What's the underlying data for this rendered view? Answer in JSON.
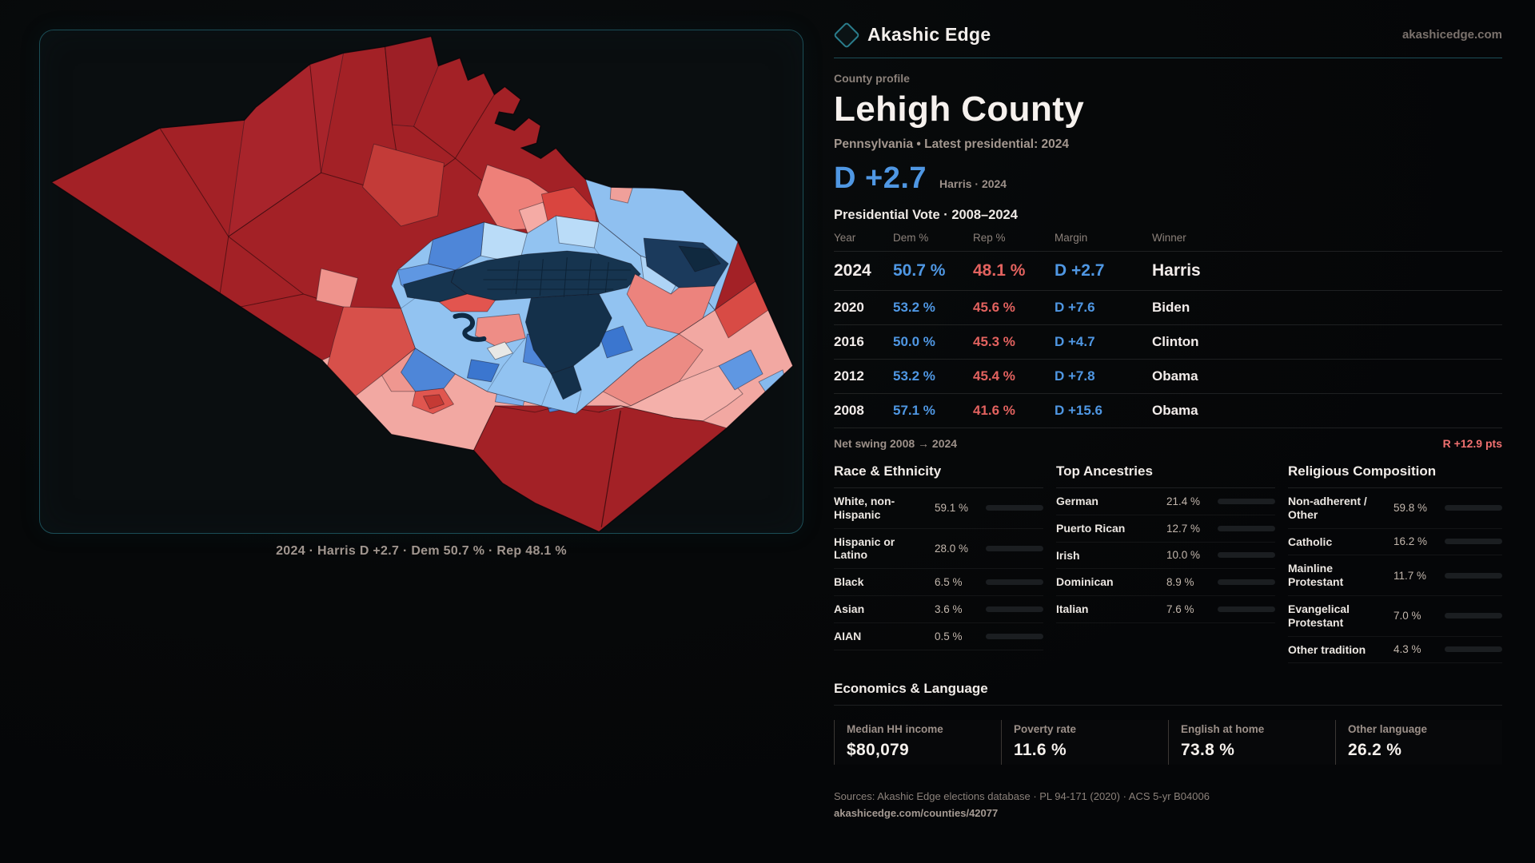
{
  "brand": {
    "name": "Akashic Edge",
    "site": "akashicedge.com"
  },
  "map": {
    "caption": "2024 · Harris D +2.7 · Dem 50.7 % · Rep 48.1 %"
  },
  "profile": {
    "kicker": "County profile",
    "title": "Lehigh County",
    "subtitle": "Pennsylvania • Latest presidential: 2024",
    "headline_margin": "D +2.7",
    "headline_note": "Harris · 2024"
  },
  "elections": {
    "heading": "Presidential Vote · 2008–2024",
    "columns": [
      "Year",
      "Dem %",
      "Rep %",
      "Margin",
      "Winner"
    ],
    "rows": [
      {
        "year": "2024",
        "dem": "50.7 %",
        "rep": "48.1 %",
        "margin": "D +2.7",
        "winner": "Harris"
      },
      {
        "year": "2020",
        "dem": "53.2 %",
        "rep": "45.6 %",
        "margin": "D +7.6",
        "winner": "Biden"
      },
      {
        "year": "2016",
        "dem": "50.0 %",
        "rep": "45.3 %",
        "margin": "D +4.7",
        "winner": "Clinton"
      },
      {
        "year": "2012",
        "dem": "53.2 %",
        "rep": "45.4 %",
        "margin": "D +7.8",
        "winner": "Obama"
      },
      {
        "year": "2008",
        "dem": "57.1 %",
        "rep": "41.6 %",
        "margin": "D +15.6",
        "winner": "Obama"
      }
    ],
    "net_swing_label": "Net swing 2008 → 2024",
    "net_swing_value": "R +12.9 pts"
  },
  "race": {
    "heading": "Race & Ethnicity",
    "rows": [
      {
        "label": "White, non-Hispanic",
        "value": "59.1 %",
        "pct": 59.1,
        "color": "#93a7c6"
      },
      {
        "label": "Hispanic or Latino",
        "value": "28.0 %",
        "pct": 28.0,
        "color": "#e39a2e"
      },
      {
        "label": "Black",
        "value": "6.5 %",
        "pct": 6.5,
        "color": "#7c5ce8"
      },
      {
        "label": "Asian",
        "value": "3.6 %",
        "pct": 3.6,
        "color": "#2fae7e"
      },
      {
        "label": "AIAN",
        "value": "0.5 %",
        "pct": 0.5,
        "color": "#c4561f"
      }
    ]
  },
  "ancestries": {
    "heading": "Top Ancestries",
    "rows": [
      {
        "label": "German",
        "value": "21.4 %",
        "pct": 21.4,
        "color": "#8ea6c4"
      },
      {
        "label": "Puerto Rican",
        "value": "12.7 %",
        "pct": 12.7,
        "color": "#e39a2e"
      },
      {
        "label": "Irish",
        "value": "10.0 %",
        "pct": 10.0,
        "color": "#93aac8"
      },
      {
        "label": "Dominican",
        "value": "8.9 %",
        "pct": 8.9,
        "color": "#e39a2e"
      },
      {
        "label": "Italian",
        "value": "7.6 %",
        "pct": 7.6,
        "color": "#93aac8"
      }
    ]
  },
  "religion": {
    "heading": "Religious Composition",
    "rows": [
      {
        "label": "Non-adherent / Other",
        "value": "59.8 %",
        "pct": 59.8,
        "color": "#7e8da6"
      },
      {
        "label": "Catholic",
        "value": "16.2 %",
        "pct": 16.2,
        "color": "#d9a32e"
      },
      {
        "label": "Mainline Protestant",
        "value": "11.7 %",
        "pct": 11.7,
        "color": "#4a86d8"
      },
      {
        "label": "Evangelical Protestant",
        "value": "7.0 %",
        "pct": 7.0,
        "color": "#d96a6a"
      },
      {
        "label": "Other tradition",
        "value": "4.3 %",
        "pct": 4.3,
        "color": "#9aa0a8"
      }
    ]
  },
  "economics": {
    "heading": "Economics & Language",
    "stats": [
      {
        "label": "Median HH income",
        "value": "$80,079"
      },
      {
        "label": "Poverty rate",
        "value": "11.6 %"
      },
      {
        "label": "English at home",
        "value": "73.8 %"
      },
      {
        "label": "Other language",
        "value": "26.2 %"
      }
    ]
  },
  "footer": {
    "sources": "Sources: Akashic Edge elections database · PL 94-171 (2020) · ACS 5-yr B04006",
    "permalink": "akashicedge.com/counties/42077"
  },
  "colors": {
    "dem_blue": "#4f97e3",
    "rep_red": "#e2625f",
    "swing_red": "#f07070",
    "accent_teal": "#2a7d8c"
  }
}
